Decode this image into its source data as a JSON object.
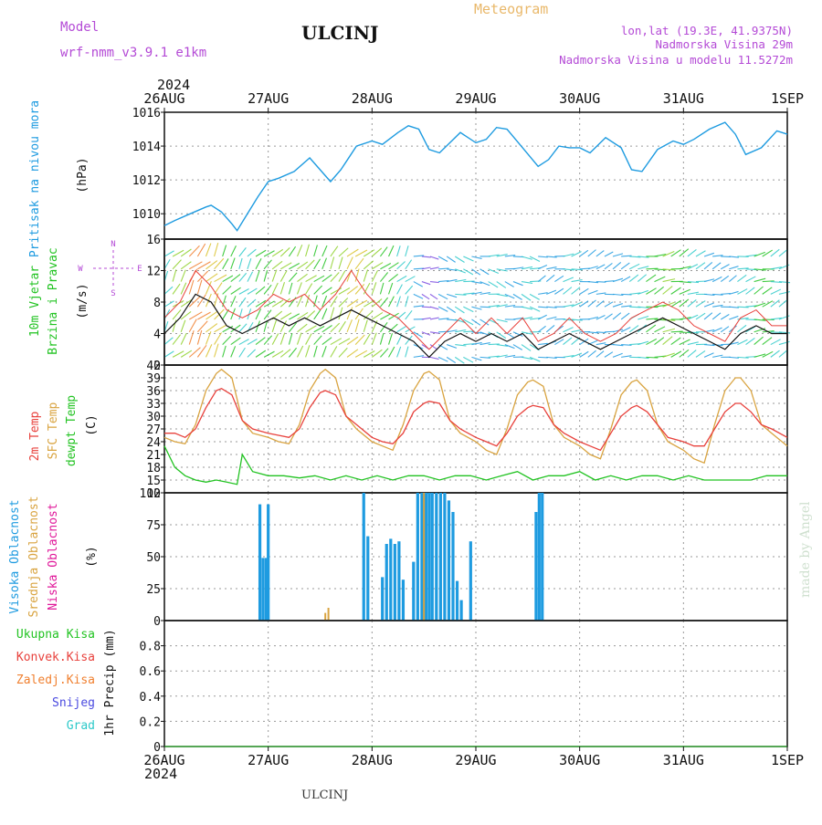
{
  "header": {
    "model_label": "Model",
    "model_name": "wrf-nmm_v3.9.1  e1km",
    "station": "ULCINJ",
    "title": "Meteogram",
    "lonlat": "lon,lat (19.3E, 41.9375N)",
    "elevation": "Nadmorska Visina 29m",
    "model_elevation": "Nadmorska Visina u modelu 11.5272m",
    "footer_station": "ULCINJ",
    "watermark": "made by Angel",
    "year_top": "2024",
    "year_bottom": "2024"
  },
  "colors": {
    "pressure": "#1e9be0",
    "temp2m": "#e8413c",
    "sfc_temp": "#d9a441",
    "dewpt": "#22c322",
    "high_cloud": "#1e9be0",
    "mid_cloud": "#d9a441",
    "low_cloud": "#e0189a",
    "wind_speed": "#111111",
    "gust": "#e8413c",
    "purple": "#b44ad6"
  },
  "chart_data": [
    {
      "type": "line",
      "panel": "pressure",
      "ylabel": [
        "Pritisak na nivou mora",
        "(hPa)"
      ],
      "ylim": [
        1008.5,
        1016
      ],
      "yticks": [
        1010,
        1012,
        1014,
        1016
      ],
      "x_day_ticks": [
        "26AUG",
        "27AUG",
        "28AUG",
        "29AUG",
        "30AUG",
        "31AUG",
        "1SEP"
      ],
      "grid": true,
      "series": [
        {
          "name": "Pritisak na nivou mora",
          "x": [
            0,
            0.1,
            0.25,
            0.4,
            0.45,
            0.55,
            0.65,
            0.7,
            0.8,
            0.9,
            1.0,
            1.1,
            1.25,
            1.4,
            1.5,
            1.6,
            1.7,
            1.85,
            2.0,
            2.1,
            2.25,
            2.35,
            2.45,
            2.55,
            2.65,
            2.75,
            2.85,
            3.0,
            3.1,
            3.2,
            3.3,
            3.45,
            3.6,
            3.7,
            3.8,
            3.9,
            4.0,
            4.1,
            4.25,
            4.4,
            4.5,
            4.6,
            4.75,
            4.9,
            5.0,
            5.1,
            5.25,
            5.4,
            5.5,
            5.6,
            5.75,
            5.9,
            6.0
          ],
          "y": [
            1009.3,
            1009.6,
            1010.0,
            1010.4,
            1010.5,
            1010.1,
            1009.4,
            1009.0,
            1010.0,
            1011.0,
            1011.9,
            1012.1,
            1012.5,
            1013.3,
            1012.6,
            1011.9,
            1012.6,
            1014.0,
            1014.3,
            1014.1,
            1014.8,
            1015.2,
            1015.0,
            1013.8,
            1013.6,
            1014.2,
            1014.8,
            1014.2,
            1014.4,
            1015.1,
            1015.0,
            1013.9,
            1012.8,
            1013.2,
            1014.0,
            1013.9,
            1013.9,
            1013.6,
            1014.5,
            1013.9,
            1012.6,
            1012.5,
            1013.8,
            1014.3,
            1014.1,
            1014.4,
            1015.0,
            1015.4,
            1014.7,
            1013.5,
            1013.9,
            1014.9,
            1014.7
          ]
        }
      ]
    },
    {
      "type": "line",
      "panel": "wind",
      "ylabel": [
        "10m Vjetar",
        "Brzina i Pravac",
        "(m/s)"
      ],
      "compass": [
        "N",
        "W",
        "E",
        "S"
      ],
      "ylim": [
        0,
        16
      ],
      "yticks": [
        0,
        4,
        8,
        12,
        16
      ],
      "grid": true,
      "series": [
        {
          "name": "speed",
          "x": [
            0,
            0.15,
            0.3,
            0.45,
            0.6,
            0.75,
            0.9,
            1.05,
            1.2,
            1.35,
            1.5,
            1.65,
            1.8,
            1.95,
            2.1,
            2.25,
            2.4,
            2.55,
            2.7,
            2.85,
            3.0,
            3.15,
            3.3,
            3.45,
            3.6,
            3.75,
            3.9,
            4.05,
            4.2,
            4.35,
            4.5,
            4.65,
            4.8,
            4.95,
            5.1,
            5.25,
            5.4,
            5.55,
            5.7,
            5.85,
            6.0
          ],
          "y": [
            4,
            6,
            9,
            8,
            5,
            4,
            5,
            6,
            5,
            6,
            5,
            6,
            7,
            6,
            5,
            4,
            3,
            1,
            3,
            4,
            3,
            4,
            3,
            4,
            2,
            3,
            4,
            3,
            2,
            3,
            4,
            5,
            6,
            5,
            4,
            3,
            2,
            4,
            5,
            4,
            4
          ]
        },
        {
          "name": "gust",
          "x": [
            0,
            0.15,
            0.3,
            0.45,
            0.6,
            0.75,
            0.9,
            1.05,
            1.2,
            1.35,
            1.5,
            1.65,
            1.8,
            1.95,
            2.1,
            2.25,
            2.4,
            2.55,
            2.7,
            2.85,
            3.0,
            3.15,
            3.3,
            3.45,
            3.6,
            3.75,
            3.9,
            4.05,
            4.2,
            4.35,
            4.5,
            4.65,
            4.8,
            4.95,
            5.1,
            5.25,
            5.4,
            5.55,
            5.7,
            5.85,
            6.0
          ],
          "y": [
            6,
            8,
            12,
            10,
            7,
            6,
            7,
            9,
            8,
            9,
            7,
            9,
            12,
            9,
            7,
            6,
            4,
            2,
            4,
            6,
            4,
            6,
            4,
            6,
            3,
            4,
            6,
            4,
            3,
            4,
            6,
            7,
            8,
            7,
            5,
            4,
            3,
            6,
            7,
            5,
            5
          ]
        }
      ]
    },
    {
      "type": "line",
      "panel": "temperature",
      "ylabel": [
        "2m Temp",
        "SFC Temp",
        "dewpt Temp",
        "(C)"
      ],
      "ylim": [
        12,
        42
      ],
      "yticks": [
        12,
        15,
        18,
        21,
        24,
        27,
        30,
        33,
        36,
        39,
        42
      ],
      "grid": true,
      "series": [
        {
          "name": "2m Temp",
          "x": [
            0,
            0.1,
            0.2,
            0.3,
            0.4,
            0.5,
            0.55,
            0.65,
            0.75,
            0.85,
            1.0,
            1.1,
            1.2,
            1.3,
            1.4,
            1.5,
            1.55,
            1.65,
            1.75,
            1.85,
            2.0,
            2.1,
            2.2,
            2.3,
            2.4,
            2.5,
            2.55,
            2.65,
            2.75,
            2.85,
            3.0,
            3.1,
            3.2,
            3.3,
            3.4,
            3.5,
            3.55,
            3.65,
            3.75,
            3.85,
            4.0,
            4.1,
            4.2,
            4.3,
            4.4,
            4.5,
            4.55,
            4.65,
            4.75,
            4.85,
            5.0,
            5.1,
            5.2,
            5.3,
            5.4,
            5.5,
            5.55,
            5.65,
            5.75,
            5.85,
            6.0
          ],
          "y": [
            26,
            26,
            25,
            27,
            32,
            36,
            36.5,
            35,
            29,
            27,
            26,
            25.5,
            25,
            27,
            32,
            35.5,
            36,
            35,
            30,
            28,
            25,
            24,
            23.5,
            26,
            31,
            33,
            33.5,
            33,
            29,
            27,
            25,
            24,
            23,
            26,
            30,
            32,
            32.5,
            32,
            28,
            26,
            24,
            23,
            22,
            26,
            30,
            32,
            32.5,
            31,
            28,
            25,
            24,
            23,
            23,
            27,
            31,
            33,
            33,
            31,
            28,
            27,
            25
          ]
        },
        {
          "name": "SFC Temp",
          "x": [
            0,
            0.1,
            0.2,
            0.3,
            0.4,
            0.5,
            0.55,
            0.65,
            0.75,
            0.85,
            1.0,
            1.1,
            1.2,
            1.3,
            1.4,
            1.5,
            1.55,
            1.65,
            1.75,
            1.85,
            2.0,
            2.1,
            2.2,
            2.3,
            2.4,
            2.5,
            2.55,
            2.65,
            2.75,
            2.85,
            3.0,
            3.1,
            3.2,
            3.3,
            3.4,
            3.5,
            3.55,
            3.65,
            3.75,
            3.85,
            4.0,
            4.1,
            4.2,
            4.3,
            4.4,
            4.5,
            4.55,
            4.65,
            4.75,
            4.85,
            5.0,
            5.1,
            5.2,
            5.3,
            5.4,
            5.5,
            5.55,
            5.65,
            5.75,
            5.85,
            6.0
          ],
          "y": [
            25,
            24,
            23.5,
            28,
            36,
            40,
            41,
            39,
            29,
            26,
            25,
            24,
            23.5,
            28,
            36,
            40,
            41,
            39,
            30,
            27,
            24,
            23,
            22,
            28,
            36,
            40,
            40.5,
            38.5,
            29,
            26,
            24,
            22,
            21,
            27,
            35,
            38,
            38.5,
            37,
            28,
            25,
            23,
            21,
            20,
            27,
            35,
            38,
            38.5,
            36,
            28,
            24,
            22,
            20,
            19,
            28,
            36,
            39,
            39,
            36,
            28,
            26,
            23
          ]
        },
        {
          "name": "dewpt Temp",
          "x": [
            0,
            0.1,
            0.2,
            0.3,
            0.4,
            0.5,
            0.6,
            0.7,
            0.75,
            0.85,
            1.0,
            1.15,
            1.3,
            1.45,
            1.6,
            1.75,
            1.9,
            2.05,
            2.2,
            2.35,
            2.5,
            2.65,
            2.8,
            2.95,
            3.1,
            3.25,
            3.4,
            3.55,
            3.7,
            3.85,
            4.0,
            4.15,
            4.3,
            4.45,
            4.6,
            4.75,
            4.9,
            5.05,
            5.2,
            5.35,
            5.5,
            5.65,
            5.8,
            5.95,
            6.0
          ],
          "y": [
            23,
            18,
            16,
            15,
            14.5,
            15,
            14.5,
            14,
            21,
            17,
            16,
            16,
            15.5,
            16,
            15,
            16,
            15,
            16,
            15,
            16,
            16,
            15,
            16,
            16,
            15,
            16,
            17,
            15,
            16,
            16,
            17,
            15,
            16,
            15,
            16,
            16,
            15,
            16,
            15,
            15,
            15,
            15,
            16,
            16,
            16
          ]
        }
      ]
    },
    {
      "type": "bar",
      "panel": "clouds",
      "ylabel": [
        "Visoka Oblacnost",
        "Srednja Oblacnost",
        "Niska Oblacnost",
        "(%)"
      ],
      "ylim": [
        0,
        100
      ],
      "yticks": [
        0,
        25,
        50,
        75,
        100
      ],
      "grid": true,
      "series": [
        {
          "name": "Visoka Oblacnost",
          "x": [
            0.92,
            0.95,
            0.98,
            1.0,
            1.92,
            1.96,
            2.1,
            2.14,
            2.18,
            2.22,
            2.26,
            2.3,
            2.4,
            2.44,
            2.48,
            2.52,
            2.55,
            2.58,
            2.62,
            2.66,
            2.7,
            2.74,
            2.78,
            2.82,
            2.86,
            2.95,
            3.58,
            3.61,
            3.64
          ],
          "y": [
            91,
            49,
            49,
            91,
            100,
            66,
            34,
            60,
            64,
            60,
            62,
            32,
            46,
            100,
            100,
            100,
            100,
            100,
            100,
            100,
            100,
            94,
            85,
            31,
            16,
            62,
            85,
            100,
            100
          ]
        },
        {
          "name": "Srednja Oblacnost",
          "x": [
            1.55,
            1.58,
            2.5
          ],
          "y": [
            6,
            10,
            100
          ]
        },
        {
          "name": "Niska Oblacnost",
          "x": [],
          "y": []
        }
      ]
    },
    {
      "type": "line",
      "panel": "precipitation",
      "ylabel": [
        "1hr Precip (mm)"
      ],
      "legend": [
        "Ukupna Kisa",
        "Konvek.Kisa",
        "Zaledj.Kisa",
        "Snijeg",
        "Grad"
      ],
      "ylim": [
        0,
        1.0
      ],
      "yticks": [
        0,
        0.2,
        0.4,
        0.6,
        0.8
      ],
      "ytick_labels": [
        "0",
        "0.2",
        "0.4",
        "0.6",
        "0.8"
      ],
      "grid": true,
      "series": [
        {
          "name": "Ukupna Kisa",
          "x": [
            0,
            6
          ],
          "y": [
            0,
            0
          ]
        }
      ]
    }
  ]
}
